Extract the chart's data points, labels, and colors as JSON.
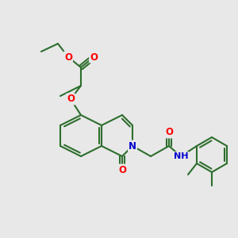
{
  "bg_color": "#e8e8e8",
  "bond_color": "#2d6e2d",
  "bond_width": 1.5,
  "atom_colors": {
    "O": "#ff0000",
    "N": "#0000cc",
    "C": "#2d6e2d"
  },
  "font_size": 8.5,
  "fig_size": [
    3.0,
    3.0
  ],
  "dpi": 100
}
